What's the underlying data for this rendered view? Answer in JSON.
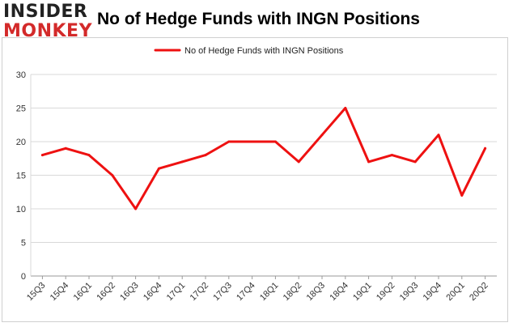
{
  "logo": {
    "line1": "INSIDER",
    "line2": "MONKEY"
  },
  "colors": {
    "series": "#ee1111",
    "grid": "#d9d9d9",
    "axis": "#999999",
    "brand_red": "#d32a2a"
  },
  "chart_data": {
    "type": "line",
    "title": "No of Hedge Funds with INGN Positions",
    "xlabel": "",
    "ylabel": "",
    "ylim": [
      0,
      30
    ],
    "yticks": [
      0,
      5,
      10,
      15,
      20,
      25,
      30
    ],
    "grid": true,
    "legend_position": "top-center",
    "categories": [
      "15Q3",
      "15Q4",
      "16Q1",
      "16Q2",
      "16Q3",
      "16Q4",
      "17Q1",
      "17Q2",
      "17Q3",
      "17Q4",
      "18Q1",
      "18Q2",
      "18Q3",
      "18Q4",
      "19Q1",
      "19Q2",
      "19Q3",
      "19Q4",
      "20Q1",
      "20Q2"
    ],
    "series": [
      {
        "name": "No of Hedge Funds with INGN Positions",
        "values": [
          18,
          19,
          18,
          15,
          10,
          16,
          17,
          18,
          20,
          20,
          20,
          17,
          21,
          25,
          17,
          18,
          17,
          21,
          12,
          19
        ]
      }
    ]
  }
}
